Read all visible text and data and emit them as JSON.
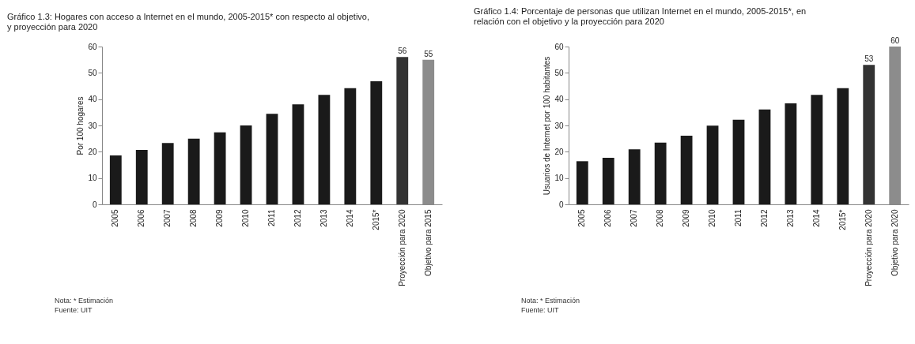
{
  "chart_data": [
    {
      "type": "bar",
      "title": "Gráfico 1.3: Hogares con acceso a Internet en el mundo, 2005-2015* con respecto al objetivo, y proyección para 2020",
      "ylabel": "Por 100 hogares",
      "categories": [
        "2005",
        "2006",
        "2007",
        "2008",
        "2009",
        "2010",
        "2011",
        "2012",
        "2013",
        "2014",
        "2015*",
        "Proyección para 2020",
        "Objetivo para 2015"
      ],
      "values": [
        18.6,
        20.7,
        23.3,
        25,
        27.4,
        30,
        34.4,
        38,
        41.6,
        44.2,
        46.8,
        56,
        55
      ],
      "colors": [
        "#1a1a1a",
        "#1a1a1a",
        "#1a1a1a",
        "#1a1a1a",
        "#1a1a1a",
        "#1a1a1a",
        "#1a1a1a",
        "#1a1a1a",
        "#1a1a1a",
        "#1a1a1a",
        "#1a1a1a",
        "#333333",
        "#8c8c8c"
      ],
      "value_labels": [
        null,
        null,
        null,
        null,
        null,
        null,
        null,
        null,
        null,
        null,
        null,
        "56",
        "55"
      ],
      "ylim": [
        0,
        60
      ],
      "yticks": [
        0,
        10,
        20,
        30,
        40,
        50,
        60
      ],
      "annotations": [
        "Nota: * Estimación",
        "Fuente: UIT"
      ]
    },
    {
      "type": "bar",
      "title": "Gráfico 1.4: Porcentaje de personas que utilizan Internet en el mundo, 2005-2015*, en relación con el objetivo y la proyección para 2020",
      "ylabel": "Usuarios de Internet por 100 habitantes",
      "categories": [
        "2005",
        "2006",
        "2007",
        "2008",
        "2009",
        "2010",
        "2011",
        "2012",
        "2013",
        "2014",
        "2015*",
        "Proyección para 2020",
        "Objetivo para 2020"
      ],
      "values": [
        16.4,
        17.7,
        20.9,
        23.5,
        26.1,
        29.9,
        32.2,
        36.1,
        38.4,
        41.6,
        44.2,
        53,
        60
      ],
      "colors": [
        "#1a1a1a",
        "#1a1a1a",
        "#1a1a1a",
        "#1a1a1a",
        "#1a1a1a",
        "#1a1a1a",
        "#1a1a1a",
        "#1a1a1a",
        "#1a1a1a",
        "#1a1a1a",
        "#1a1a1a",
        "#333333",
        "#8c8c8c"
      ],
      "value_labels": [
        null,
        null,
        null,
        null,
        null,
        null,
        null,
        null,
        null,
        null,
        null,
        "53",
        "60"
      ],
      "ylim": [
        0,
        60
      ],
      "yticks": [
        0,
        10,
        20,
        30,
        40,
        50,
        60
      ],
      "annotations": [
        "Nota: * Estimación",
        "Fuente: UIT"
      ]
    }
  ]
}
